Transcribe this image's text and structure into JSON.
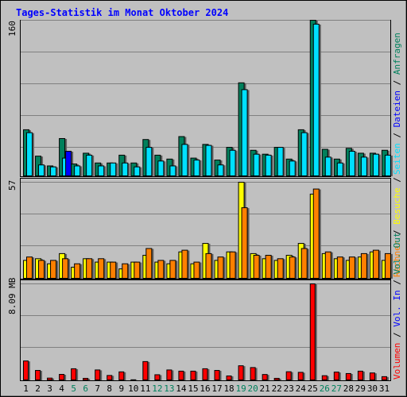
{
  "chart_data": [
    {
      "type": "bar",
      "title": "Tages-Statistik im Monat Oktober 2024",
      "categories": [
        "1",
        "2",
        "3",
        "4",
        "5",
        "6",
        "7",
        "8",
        "9",
        "10",
        "11",
        "12",
        "13",
        "14",
        "15",
        "16",
        "17",
        "18",
        "19",
        "20",
        "21",
        "22",
        "23",
        "24",
        "25",
        "26",
        "27",
        "28",
        "29",
        "30",
        "31"
      ],
      "weekend_days": [
        "5",
        "6",
        "12",
        "13",
        "19",
        "20",
        "26",
        "27"
      ],
      "ylabel_parts": [
        "Anfragen",
        "Dateien",
        "Seiten"
      ],
      "ymax_label": "160",
      "ymax": 160,
      "series": [
        {
          "name": "Anfragen",
          "color": "#00805c",
          "values": [
            48,
            21,
            11,
            39,
            13,
            24,
            14,
            14,
            22,
            14,
            38,
            22,
            18,
            41,
            19,
            33,
            17,
            30,
            96,
            27,
            23,
            30,
            18,
            48,
            160,
            28,
            18,
            29,
            24,
            24,
            27
          ]
        },
        {
          "name": "Dateien",
          "color": "#00e0ff",
          "values": [
            45,
            12,
            10,
            19,
            11,
            22,
            11,
            14,
            14,
            10,
            30,
            16,
            11,
            33,
            17,
            32,
            12,
            27,
            89,
            23,
            22,
            30,
            16,
            45,
            156,
            20,
            14,
            26,
            20,
            23,
            22
          ]
        },
        {
          "name": "Seiten",
          "color": "#0000ff",
          "values": [
            0,
            0,
            0,
            26,
            0,
            0,
            0,
            0,
            0,
            0,
            0,
            0,
            0,
            0,
            0,
            0,
            0,
            0,
            0,
            0,
            0,
            0,
            0,
            0,
            0,
            0,
            0,
            0,
            0,
            0,
            0
          ]
        }
      ]
    },
    {
      "type": "bar",
      "ylabel_parts": [
        "Rechner",
        "Besuche"
      ],
      "ymax_label": "57",
      "ymax": 57,
      "series": [
        {
          "name": "Besuche",
          "color": "#ffff00",
          "values": [
            11,
            12,
            9,
            15,
            7,
            12,
            10,
            10,
            6,
            10,
            14,
            10,
            9,
            16,
            9,
            21,
            11,
            16,
            57,
            15,
            12,
            11,
            14,
            21,
            50,
            15,
            12,
            11,
            13,
            16,
            11
          ]
        },
        {
          "name": "Rechner",
          "color": "#ff8000",
          "values": [
            13,
            11,
            11,
            12,
            9,
            12,
            12,
            10,
            9,
            10,
            18,
            11,
            11,
            17,
            10,
            15,
            13,
            16,
            42,
            14,
            14,
            12,
            13,
            18,
            53,
            16,
            13,
            13,
            15,
            17,
            15
          ]
        }
      ]
    },
    {
      "type": "bar",
      "ylabel_parts": [
        "Volumen",
        "Vol. In",
        "Vol. Out"
      ],
      "ymax_label": "8.09 MB",
      "ymax": 8.09,
      "series": [
        {
          "name": "Volumen",
          "color": "#ff0000",
          "values": [
            1.65,
            0.86,
            0.22,
            0.53,
            1.0,
            0.2,
            0.9,
            0.44,
            0.74,
            0.08,
            1.6,
            0.5,
            0.9,
            0.8,
            0.8,
            1.0,
            0.86,
            0.4,
            1.25,
            1.1,
            0.52,
            0.2,
            0.75,
            0.7,
            8.09,
            0.42,
            0.72,
            0.6,
            0.8,
            0.65,
            0.34
          ]
        }
      ]
    }
  ],
  "colors": {
    "background": "#c0c0c0",
    "grid": "#808080",
    "title": "#0000ff",
    "weekday_label": "#000000",
    "weekend_label": "#00805c",
    "separator": "#000000"
  }
}
